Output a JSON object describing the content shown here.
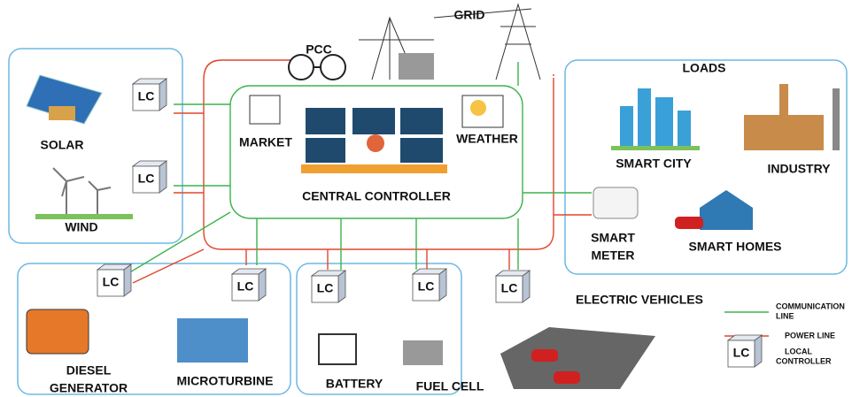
{
  "grid": {
    "pcc": "PCC",
    "label": "GRID"
  },
  "sources": {
    "solar": "SOLAR",
    "wind": "WIND",
    "diesel": [
      "DIESEL",
      "GENERATOR"
    ],
    "microturbine": "MICROTURBINE",
    "battery": "BATTERY",
    "fuel_cell": "FUEL CELL"
  },
  "controller": {
    "market": "MARKET",
    "weather": "WEATHER",
    "label": "CENTRAL CONTROLLER"
  },
  "loads": {
    "title": "LOADS",
    "smart_city": "SMART CITY",
    "industry": "INDUSTRY",
    "smart_meter": [
      "SMART",
      "METER"
    ],
    "smart_homes": "SMART HOMES",
    "electric_vehicles": "ELECTRIC VEHICLES"
  },
  "lc_label": "LC",
  "legend": {
    "communication": [
      "COMMUNICATION",
      "LINE"
    ],
    "power": "POWER LINE",
    "local_controller": [
      "LOCAL",
      "CONTROLLER"
    ]
  }
}
